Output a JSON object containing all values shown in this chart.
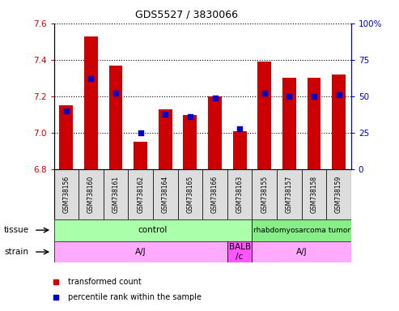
{
  "title": "GDS5527 / 3830066",
  "samples": [
    "GSM738156",
    "GSM738160",
    "GSM738161",
    "GSM738162",
    "GSM738164",
    "GSM738165",
    "GSM738166",
    "GSM738163",
    "GSM738155",
    "GSM738157",
    "GSM738158",
    "GSM738159"
  ],
  "bar_values": [
    7.15,
    7.53,
    7.37,
    6.95,
    7.13,
    7.1,
    7.2,
    7.01,
    7.39,
    7.3,
    7.3,
    7.32
  ],
  "dot_values": [
    40,
    62,
    52,
    25,
    38,
    36,
    49,
    28,
    52,
    50,
    50,
    51
  ],
  "ymin": 6.8,
  "ymax": 7.6,
  "y2min": 0,
  "y2max": 100,
  "yticks": [
    6.8,
    7.0,
    7.2,
    7.4,
    7.6
  ],
  "y2ticks": [
    0,
    25,
    50,
    75,
    100
  ],
  "bar_color": "#cc0000",
  "dot_color": "#0000cc",
  "bar_bottom": 6.8,
  "tissue_groups": [
    {
      "label": "control",
      "start": 0,
      "end": 8,
      "color": "#aaffaa"
    },
    {
      "label": "rhabdomyosarcoma tumor",
      "start": 8,
      "end": 12,
      "color": "#88ee88"
    }
  ],
  "strain_groups": [
    {
      "label": "A/J",
      "start": 0,
      "end": 7,
      "color": "#ffaaff"
    },
    {
      "label": "BALB\n/c",
      "start": 7,
      "end": 8,
      "color": "#ff55ff"
    },
    {
      "label": "A/J",
      "start": 8,
      "end": 12,
      "color": "#ffaaff"
    }
  ],
  "left_axis_color": "#cc0000",
  "right_axis_color": "#0000cc",
  "background_color": "#ffffff",
  "grid_color": "#000000",
  "tissue_label": "tissue",
  "strain_label": "strain",
  "label_col_color": "#dddddd"
}
